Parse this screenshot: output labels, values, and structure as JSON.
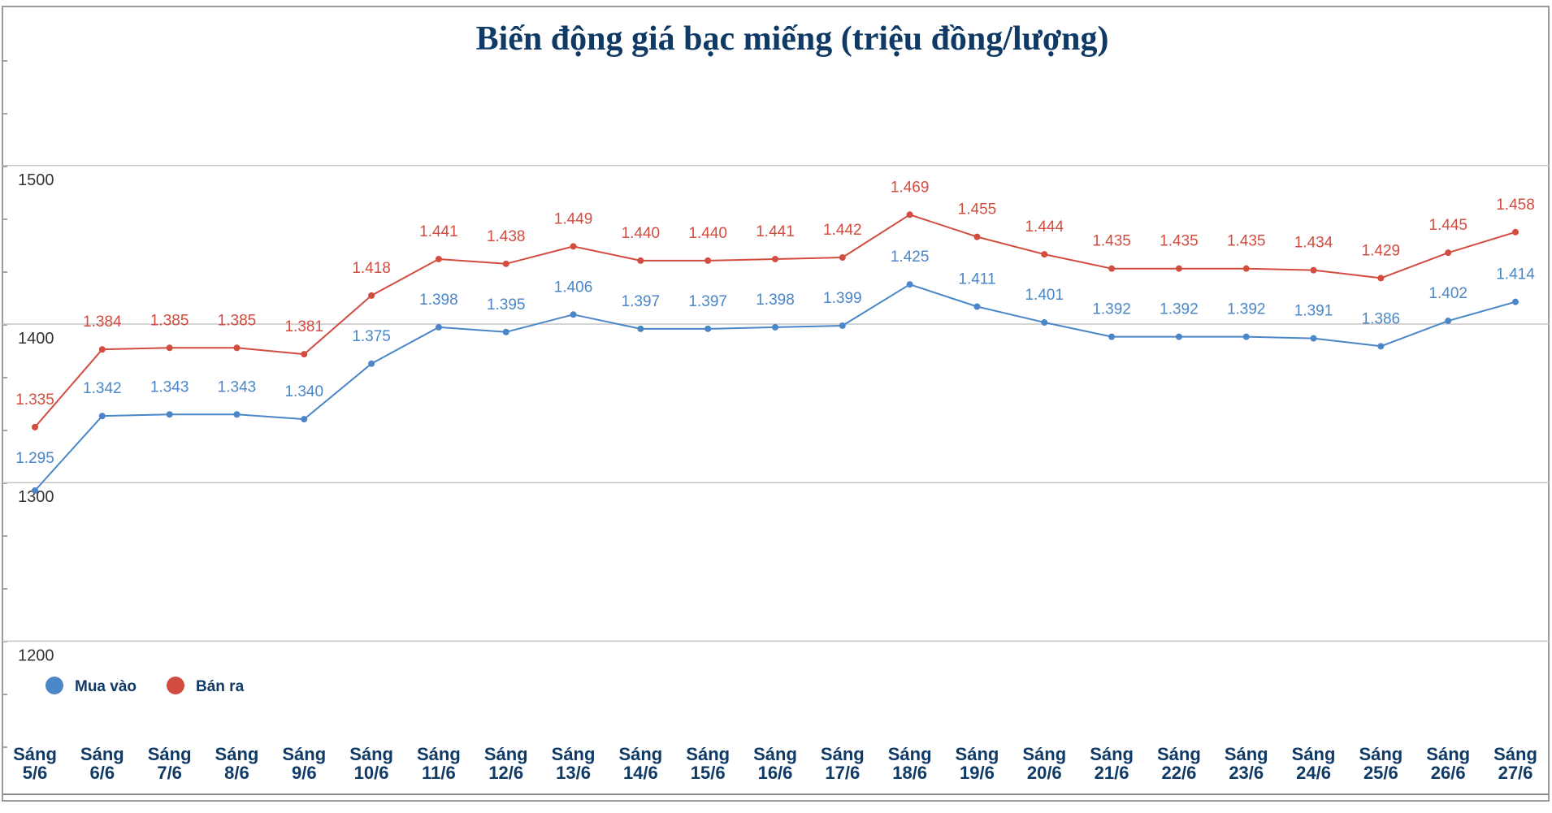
{
  "chart_data": {
    "type": "line",
    "title": "Biến động giá bạc miếng (triệu đồng/lượng)",
    "xlabel": "",
    "ylabel": "",
    "categories": [
      [
        "Sáng",
        "5/6"
      ],
      [
        "Sáng",
        "6/6"
      ],
      [
        "Sáng",
        "7/6"
      ],
      [
        "Sáng",
        "8/6"
      ],
      [
        "Sáng",
        "9/6"
      ],
      [
        "Sáng",
        "10/6"
      ],
      [
        "Sáng",
        "11/6"
      ],
      [
        "Sáng",
        "12/6"
      ],
      [
        "Sáng",
        "13/6"
      ],
      [
        "Sáng",
        "14/6"
      ],
      [
        "Sáng",
        "15/6"
      ],
      [
        "Sáng",
        "16/6"
      ],
      [
        "Sáng",
        "17/6"
      ],
      [
        "Sáng",
        "18/6"
      ],
      [
        "Sáng",
        "19/6"
      ],
      [
        "Sáng",
        "20/6"
      ],
      [
        "Sáng",
        "21/6"
      ],
      [
        "Sáng",
        "22/6"
      ],
      [
        "Sáng",
        "23/6"
      ],
      [
        "Sáng",
        "24/6"
      ],
      [
        "Sáng",
        "25/6"
      ],
      [
        "Sáng",
        "26/6"
      ],
      [
        "Sáng",
        "27/6"
      ]
    ],
    "yticks": [
      "1200",
      "1300",
      "1400",
      "1500"
    ],
    "ylim": [
      1185,
      1600
    ],
    "grid": true,
    "legend_position": "bottom-left",
    "series": [
      {
        "name": "Mua vào",
        "color": "#4a86c8",
        "values": [
          1295,
          1342,
          1343,
          1343,
          1340,
          1375,
          1398,
          1395,
          1406,
          1397,
          1397,
          1398,
          1399,
          1425,
          1411,
          1401,
          1392,
          1392,
          1392,
          1391,
          1386,
          1402,
          1414
        ],
        "labels": [
          "1.295",
          "1.342",
          "1.343",
          "1.343",
          "1.340",
          "1.375",
          "1.398",
          "1.395",
          "1.406",
          "1.397",
          "1.397",
          "1.398",
          "1.399",
          "1.425",
          "1.411",
          "1.401",
          "1.392",
          "1.392",
          "1.392",
          "1.391",
          "1.386",
          "1.402",
          "1.414"
        ]
      },
      {
        "name": "Bán ra",
        "color": "#d24c3f",
        "values": [
          1335,
          1384,
          1385,
          1385,
          1381,
          1418,
          1441,
          1438,
          1449,
          1440,
          1440,
          1441,
          1442,
          1469,
          1455,
          1444,
          1435,
          1435,
          1435,
          1434,
          1429,
          1445,
          1458
        ],
        "labels": [
          "1.335",
          "1.384",
          "1.385",
          "1.385",
          "1.381",
          "1.418",
          "1.441",
          "1.438",
          "1.449",
          "1.440",
          "1.440",
          "1.441",
          "1.442",
          "1.469",
          "1.455",
          "1.444",
          "1.435",
          "1.435",
          "1.435",
          "1.434",
          "1.429",
          "1.445",
          "1.458"
        ]
      }
    ]
  }
}
